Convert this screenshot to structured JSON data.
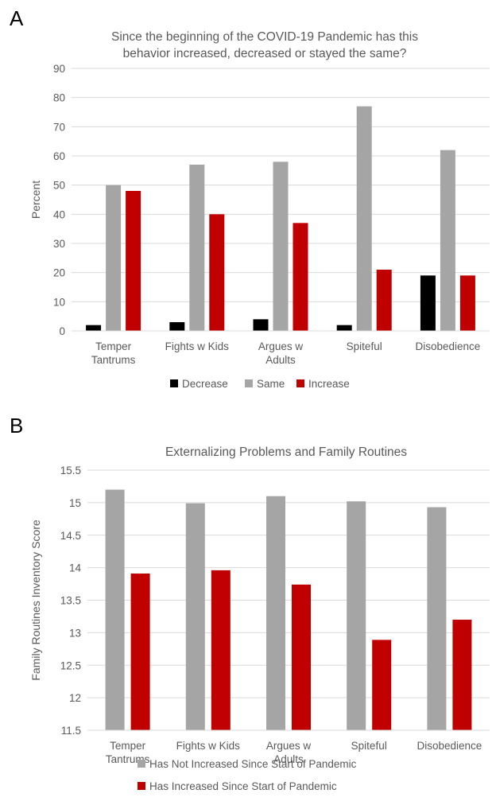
{
  "panels": {
    "a": "A",
    "b": "B"
  },
  "chart_data": [
    {
      "type": "bar",
      "title_lines": [
        "Since the beginning of the COVID-19 Pandemic has this",
        "behavior increased, decreased or stayed the same?"
      ],
      "ylabel": "Percent",
      "ylim": [
        0,
        90
      ],
      "yticks": [
        0,
        10,
        20,
        30,
        40,
        50,
        60,
        70,
        80,
        90
      ],
      "categories": [
        [
          "Temper",
          "Tantrums"
        ],
        [
          "Fights w Kids"
        ],
        [
          "Argues w",
          "Adults"
        ],
        [
          "Spiteful"
        ],
        [
          "Disobedience"
        ]
      ],
      "series": [
        {
          "name": "Decrease",
          "color": "#000000",
          "values": [
            2,
            3,
            4,
            2,
            19
          ]
        },
        {
          "name": "Same",
          "color": "#a5a5a5",
          "values": [
            50,
            57,
            58,
            77,
            62
          ]
        },
        {
          "name": "Increase",
          "color": "#c00000",
          "values": [
            48,
            40,
            37,
            21,
            19
          ]
        }
      ],
      "grid": true,
      "legend": "bottom"
    },
    {
      "type": "bar",
      "title_lines": [
        "Externalizing Problems and Family Routines"
      ],
      "ylabel": "Family Routines Inventory Score",
      "ylim": [
        11.5,
        15.5
      ],
      "yticks": [
        11.5,
        12,
        12.5,
        13,
        13.5,
        14,
        14.5,
        15,
        15.5
      ],
      "categories": [
        [
          "Temper",
          "Tantrums"
        ],
        [
          "Fights w Kids"
        ],
        [
          "Argues w",
          "Adults"
        ],
        [
          "Spiteful"
        ],
        [
          "Disobedience"
        ]
      ],
      "series": [
        {
          "name": "Has Not Increased Since Start  of Pandemic",
          "color": "#a5a5a5",
          "values": [
            15.2,
            14.99,
            15.1,
            15.02,
            14.93
          ]
        },
        {
          "name": "Has Increased Since Start of Pandemic",
          "color": "#c00000",
          "values": [
            13.91,
            13.96,
            13.74,
            12.89,
            13.2
          ]
        }
      ],
      "grid": true,
      "legend": "bottom"
    }
  ]
}
